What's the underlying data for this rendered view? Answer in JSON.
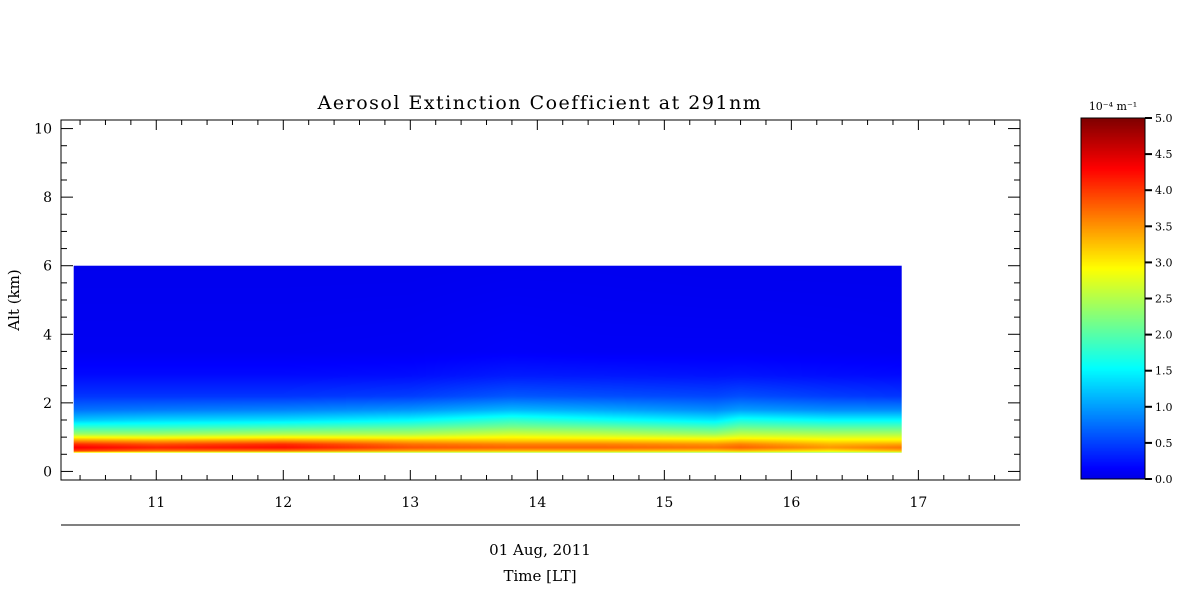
{
  "chart_data": {
    "type": "heatmap",
    "title": "Aerosol Extinction Coefficient at 291nm",
    "xlabel_date": "01 Aug, 2011",
    "xlabel": "Time [LT]",
    "ylabel": "Alt (km)",
    "xlim": [
      10.25,
      17.8
    ],
    "ylim": [
      -0.25,
      10.25
    ],
    "x_ticks": [
      11,
      12,
      13,
      14,
      15,
      16,
      17
    ],
    "y_ticks": [
      0,
      2,
      4,
      6,
      8,
      10
    ],
    "data_extent": {
      "x": [
        10.35,
        16.87
      ],
      "y": [
        0.55,
        6.0
      ]
    },
    "colorbar": {
      "unit": "10⁻⁴ m⁻¹",
      "min": 0.0,
      "max": 5.0,
      "ticks": [
        "0.0",
        "0.5",
        "1.0",
        "1.5",
        "2.0",
        "2.5",
        "3.0",
        "3.5",
        "4.0",
        "4.5",
        "5.0"
      ],
      "colormap": "jet"
    },
    "profile_altitudes_km": [
      0.55,
      0.6,
      0.7,
      0.8,
      0.9,
      1.0,
      1.1,
      1.3,
      1.5,
      1.8,
      2.2,
      2.8,
      3.5,
      6.0
    ],
    "profiles": [
      {
        "time": 10.35,
        "values": [
          2.8,
          4.2,
          4.6,
          4.3,
          3.7,
          3.1,
          2.5,
          1.9,
          1.3,
          0.8,
          0.45,
          0.2,
          0.08,
          0.05
        ]
      },
      {
        "time": 11.0,
        "values": [
          2.6,
          3.9,
          4.4,
          4.1,
          3.6,
          3.0,
          2.5,
          1.9,
          1.4,
          0.85,
          0.45,
          0.2,
          0.08,
          0.05
        ]
      },
      {
        "time": 12.0,
        "values": [
          2.5,
          3.9,
          4.5,
          4.3,
          3.7,
          3.1,
          2.6,
          2.0,
          1.45,
          0.9,
          0.45,
          0.2,
          0.08,
          0.05
        ]
      },
      {
        "time": 13.0,
        "values": [
          2.4,
          3.6,
          4.1,
          3.9,
          3.5,
          3.0,
          2.6,
          2.1,
          1.6,
          1.0,
          0.5,
          0.22,
          0.09,
          0.05
        ]
      },
      {
        "time": 13.8,
        "values": [
          2.4,
          3.5,
          4.0,
          3.8,
          3.4,
          3.1,
          2.8,
          2.3,
          1.9,
          1.2,
          0.65,
          0.3,
          0.12,
          0.06
        ]
      },
      {
        "time": 14.5,
        "values": [
          2.4,
          3.5,
          4.0,
          3.8,
          3.4,
          3.0,
          2.7,
          2.2,
          1.7,
          1.1,
          0.6,
          0.28,
          0.1,
          0.06
        ]
      },
      {
        "time": 15.4,
        "values": [
          2.3,
          3.4,
          3.9,
          3.7,
          3.3,
          2.9,
          2.5,
          2.0,
          1.5,
          0.95,
          0.55,
          0.25,
          0.1,
          0.05
        ]
      },
      {
        "time": 15.6,
        "values": [
          2.4,
          3.5,
          4.0,
          3.8,
          3.4,
          3.0,
          2.7,
          2.2,
          1.75,
          1.05,
          0.6,
          0.26,
          0.1,
          0.05
        ]
      },
      {
        "time": 16.3,
        "values": [
          2.3,
          3.2,
          3.7,
          3.5,
          3.2,
          2.9,
          2.6,
          2.1,
          1.6,
          0.95,
          0.5,
          0.22,
          0.09,
          0.05
        ]
      },
      {
        "time": 16.87,
        "values": [
          2.4,
          3.5,
          3.9,
          3.6,
          3.2,
          2.9,
          2.6,
          2.1,
          1.6,
          0.95,
          0.45,
          0.2,
          0.08,
          0.05
        ]
      }
    ]
  }
}
